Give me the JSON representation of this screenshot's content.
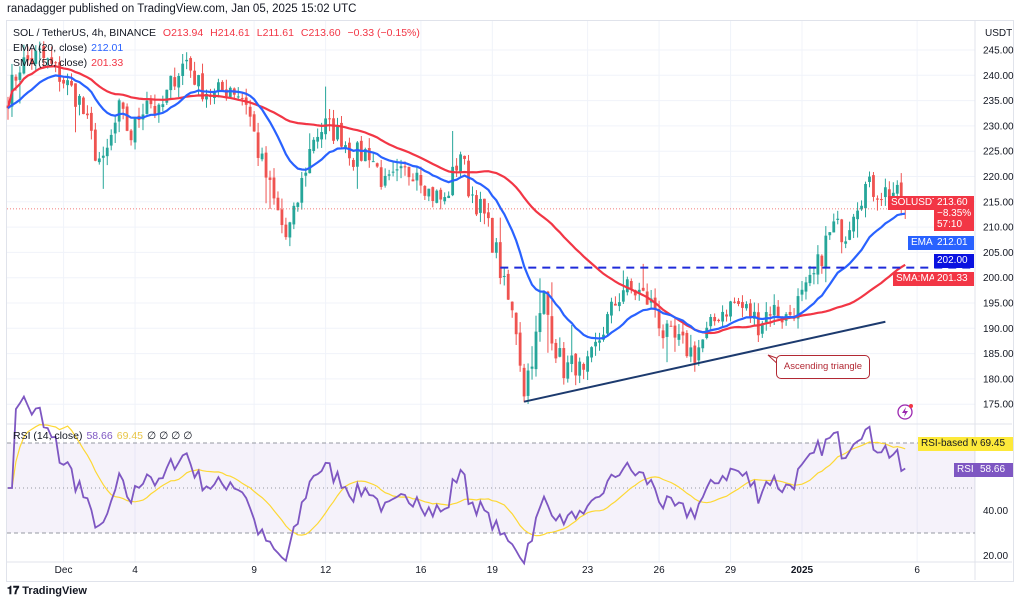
{
  "header": {
    "published": "ranadagger published on TradingView.com, Jan 05, 2025 15:02 UTC"
  },
  "legend": {
    "symbol": "SOL / TetherUS, 4h, BINANCE",
    "o": "O213.94",
    "h": "H214.61",
    "l": "L211.61",
    "c": "C213.60",
    "change": "−0.33 (−0.15%)",
    "ema_label": "EMA (20, close)",
    "ema_value": "212.01",
    "sma_label": "SMA (50, close)",
    "sma_value": "201.33",
    "rsi_label": "RSI (14, close)",
    "rsi_value": "58.66",
    "rsi_ma_value": "69.45",
    "rsi_extra": "∅ ∅ ∅ ∅"
  },
  "axis": {
    "currency": "USDT",
    "price_ticks": [
      "245.00",
      "240.00",
      "235.00",
      "230.00",
      "225.00",
      "220.00",
      "215.00",
      "210.00",
      "205.00",
      "200.00",
      "195.00",
      "190.00",
      "185.00",
      "180.00",
      "175.00"
    ],
    "rsi_ticks": [
      "40.00",
      "20.00"
    ]
  },
  "tags": {
    "symbol": "SOLUSDT",
    "price": "213.60",
    "pct": "−8.35%",
    "countdown": "57:10",
    "ema": "EMA",
    "ema_value": "212.01",
    "level": "202.00",
    "sma": "SMA:MA",
    "sma_value": "201.33",
    "rsi_ma": "RSI-based MA",
    "rsi_ma_value": "69.45",
    "rsi": "RSI",
    "rsi_value": "58.66"
  },
  "annotation": {
    "text": "Ascending triangle"
  },
  "footer": {
    "brand": "TradingView"
  },
  "colors": {
    "up": "#26a69a",
    "down": "#ef5350",
    "ema": "#2962ff",
    "sma": "#f23645",
    "rsi": "#7e57c2",
    "rsi_ma": "#fdd835",
    "level": "#1f2bd9",
    "trend": "#1c3a6e"
  },
  "chart_data": {
    "type": "candlestick",
    "title": "SOL / TetherUS, 4h, BINANCE",
    "ylim": [
      172,
      247
    ],
    "bars": 227,
    "close_anchors": [
      [
        0,
        236
      ],
      [
        3,
        242
      ],
      [
        8,
        244
      ],
      [
        13,
        240
      ],
      [
        18,
        235
      ],
      [
        22,
        225
      ],
      [
        24,
        222
      ],
      [
        28,
        233
      ],
      [
        31,
        228
      ],
      [
        35,
        236
      ],
      [
        38,
        232
      ],
      [
        42,
        240
      ],
      [
        45,
        243
      ],
      [
        48,
        238
      ],
      [
        52,
        236
      ],
      [
        56,
        238
      ],
      [
        60,
        235
      ],
      [
        63,
        225
      ],
      [
        67,
        215
      ],
      [
        70,
        208
      ],
      [
        72,
        212
      ],
      [
        75,
        222
      ],
      [
        77,
        228
      ],
      [
        80,
        230
      ],
      [
        84,
        228
      ],
      [
        87,
        224
      ],
      [
        91,
        225
      ],
      [
        95,
        218
      ],
      [
        99,
        220
      ],
      [
        103,
        222
      ],
      [
        106,
        217
      ],
      [
        110,
        215
      ],
      [
        114,
        225
      ],
      [
        116,
        218
      ],
      [
        120,
        212
      ],
      [
        123,
        205
      ],
      [
        125,
        198
      ],
      [
        128,
        190
      ],
      [
        130,
        178
      ],
      [
        133,
        188
      ],
      [
        135,
        196
      ],
      [
        138,
        186
      ],
      [
        140,
        182
      ],
      [
        143,
        183
      ],
      [
        145,
        180
      ],
      [
        148,
        186
      ],
      [
        150,
        190
      ],
      [
        153,
        195
      ],
      [
        155,
        198
      ],
      [
        159,
        197
      ],
      [
        163,
        194
      ],
      [
        165,
        189
      ],
      [
        169,
        187
      ],
      [
        173,
        185
      ],
      [
        177,
        190
      ],
      [
        179,
        193
      ],
      [
        183,
        195
      ],
      [
        187,
        193
      ],
      [
        189,
        191
      ],
      [
        192,
        194
      ],
      [
        196,
        192
      ],
      [
        198,
        194
      ],
      [
        201,
        197
      ],
      [
        203,
        200
      ],
      [
        206,
        207
      ],
      [
        208,
        210
      ],
      [
        211,
        209
      ],
      [
        213,
        214
      ],
      [
        216,
        218
      ],
      [
        220,
        217
      ],
      [
        223,
        217
      ],
      [
        226,
        213.6
      ]
    ],
    "last_bar": {
      "open": 213.94,
      "high": 214.61,
      "low": 211.61,
      "close": 213.6
    },
    "x_ticks": [
      {
        "label": "Dec",
        "bar": 14
      },
      {
        "label": "4",
        "bar": 32
      },
      {
        "label": "9",
        "bar": 62
      },
      {
        "label": "12",
        "bar": 80
      },
      {
        "label": "16",
        "bar": 104
      },
      {
        "label": "19",
        "bar": 122
      },
      {
        "label": "23",
        "bar": 146
      },
      {
        "label": "26",
        "bar": 164
      },
      {
        "label": "29",
        "bar": 182
      },
      {
        "label": "2025",
        "bar": 200
      },
      {
        "label": "6",
        "bar": 229
      }
    ],
    "horizontal_level": {
      "price": 202.0,
      "from_bar": 124
    },
    "trendline": {
      "from": {
        "bar": 130,
        "price": 175.5
      },
      "to": {
        "bar": 221,
        "price": 191.3
      }
    },
    "indicators": [
      "EMA 20",
      "SMA 50",
      "RSI 14",
      "RSI-based MA 14"
    ],
    "rsi_levels": [
      70,
      50,
      30
    ]
  }
}
